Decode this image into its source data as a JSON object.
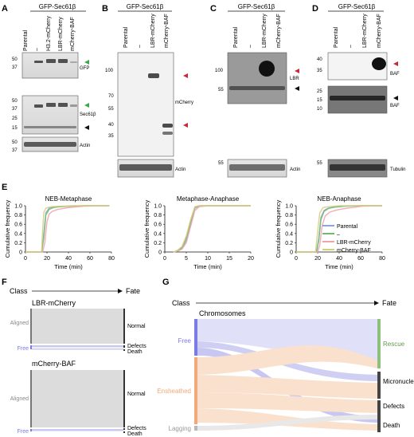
{
  "panels": {
    "A": {
      "letter": "A",
      "header": "GFP-Sec61β",
      "lanes": [
        "Parental",
        "–",
        "H3.2-mCherry",
        "LBR-mCherry",
        "mCherry-BAF"
      ],
      "blots": [
        {
          "label": "GFP",
          "markers": [
            "50",
            "37"
          ]
        },
        {
          "label": "Sec61β",
          "markers": [
            "50",
            "37",
            "25",
            "15"
          ]
        },
        {
          "label": "Actin",
          "markers": [
            "50",
            "37"
          ]
        }
      ]
    },
    "B": {
      "letter": "B",
      "header": "GFP-Sec61β",
      "lanes": [
        "Parental",
        "–",
        "LBR-mCherry",
        "mCherry-BAF"
      ],
      "blots": [
        {
          "label": "mCherry",
          "markers": [
            "100",
            "70",
            "55",
            "40",
            "35"
          ]
        },
        {
          "label": "Actin",
          "markers": []
        }
      ]
    },
    "C": {
      "letter": "C",
      "header": "GFP-Sec61β",
      "lanes": [
        "Parental",
        "–",
        "LBR-mCherry",
        "mCherry-BAF"
      ],
      "blots": [
        {
          "label": "LBR",
          "markers": [
            "100",
            "55"
          ]
        },
        {
          "label": "Actin",
          "markers": [
            "55"
          ]
        }
      ]
    },
    "D": {
      "letter": "D",
      "header": "GFP-Sec61β",
      "lanes": [
        "Parental",
        "–",
        "LBR-mCherry",
        "mCherry-BAF"
      ],
      "blots": [
        {
          "label": "BAF",
          "markers": [
            "40",
            "35"
          ]
        },
        {
          "label": "BAF",
          "markers": [
            "25",
            "15",
            "10"
          ]
        },
        {
          "label": "Tubulin",
          "markers": [
            "55"
          ]
        }
      ]
    },
    "E": {
      "letter": "E",
      "ylabel": "Cumulative frequency",
      "xlabel": "Time (min)",
      "legend": [
        "Parental",
        "–",
        "LBR-mCherry",
        "mCherry-BAF"
      ]
    },
    "F": {
      "letter": "F",
      "class_label": "Class",
      "fate_label": "Fate",
      "plots": [
        {
          "title": "LBR-mCherry",
          "classes": [
            "Aligned",
            "Free"
          ],
          "fates": [
            "Normal",
            "Defects",
            "Death"
          ]
        },
        {
          "title": "mCherry-BAF",
          "classes": [
            "Aligned",
            "Free"
          ],
          "fates": [
            "Normal",
            "Defects",
            "Death"
          ]
        }
      ]
    },
    "G": {
      "letter": "G",
      "class_label": "Class",
      "fate_label": "Fate",
      "title": "Chromosomes",
      "classes": [
        "Free",
        "Ensheathed",
        "Lagging"
      ],
      "fates": [
        "Rescue",
        "Micronuclei",
        "Defects",
        "Death"
      ]
    }
  },
  "colors": {
    "parental": "#8ea6e0",
    "none": "#74b874",
    "lbr": "#f0a3ad",
    "baf": "#d4d07a",
    "free": "#7b7be8",
    "ensheathed": "#f2a878",
    "lagging": "#b8b8b8",
    "rescue": "#8fbf7f",
    "green_arrow": "#3aa84a",
    "red_arrow": "#c8283c"
  },
  "chart_data": [
    {
      "type": "line",
      "title": "NEB-Metaphase",
      "xlabel": "Time (min)",
      "ylabel": "Cumulative frequency",
      "xlim": [
        0,
        80
      ],
      "ylim": [
        0,
        1.0
      ],
      "xticks": [
        0,
        20,
        40,
        60,
        80
      ],
      "yticks": [
        0,
        0.2,
        0.4,
        0.6,
        0.8,
        1.0
      ],
      "series": [
        {
          "name": "Parental",
          "x": [
            0,
            15,
            17,
            19,
            22,
            26,
            32,
            40,
            55,
            78
          ],
          "y": [
            0,
            0,
            0.4,
            0.85,
            0.95,
            0.97,
            0.98,
            0.99,
            1.0,
            1.0
          ]
        },
        {
          "name": "–",
          "x": [
            0,
            15,
            17,
            19,
            22,
            26,
            32,
            40,
            55,
            78
          ],
          "y": [
            0,
            0,
            0.3,
            0.8,
            0.92,
            0.96,
            0.98,
            0.99,
            1.0,
            1.0
          ]
        },
        {
          "name": "LBR-mCherry",
          "x": [
            0,
            16,
            18,
            20,
            22,
            25,
            30,
            40,
            55,
            78
          ],
          "y": [
            0,
            0,
            0.2,
            0.65,
            0.82,
            0.88,
            0.92,
            0.96,
            0.99,
            1.0
          ]
        },
        {
          "name": "mCherry-BAF",
          "x": [
            0,
            15,
            16,
            17,
            19,
            24,
            32,
            45,
            78
          ],
          "y": [
            0,
            0,
            0.5,
            0.85,
            0.95,
            0.98,
            0.99,
            1.0,
            1.0
          ]
        }
      ]
    },
    {
      "type": "line",
      "title": "Metaphase-Anaphase",
      "xlabel": "Time (min)",
      "ylabel": "Cumulative frequency",
      "xlim": [
        0,
        20
      ],
      "ylim": [
        0,
        1.0
      ],
      "xticks": [
        0,
        5,
        10,
        15,
        20
      ],
      "yticks": [
        0,
        0.2,
        0.4,
        0.6,
        0.8,
        1.0
      ],
      "series": [
        {
          "name": "Parental",
          "x": [
            2,
            3,
            4,
            5,
            6,
            7,
            8,
            10,
            20
          ],
          "y": [
            0,
            0.02,
            0.08,
            0.25,
            0.6,
            0.95,
            0.99,
            1.0,
            1.0
          ]
        },
        {
          "name": "–",
          "x": [
            2,
            3,
            4,
            5,
            6,
            7,
            8,
            10,
            20
          ],
          "y": [
            0,
            0.03,
            0.1,
            0.3,
            0.65,
            0.97,
            1.0,
            1.0,
            1.0
          ]
        },
        {
          "name": "LBR-mCherry",
          "x": [
            2,
            3,
            4,
            5,
            6,
            7,
            8,
            10,
            20
          ],
          "y": [
            0,
            0.02,
            0.06,
            0.2,
            0.55,
            0.9,
            0.98,
            1.0,
            1.0
          ]
        },
        {
          "name": "mCherry-BAF",
          "x": [
            2,
            3,
            4,
            5,
            6,
            7,
            8,
            10,
            20
          ],
          "y": [
            0,
            0.04,
            0.12,
            0.35,
            0.7,
            0.98,
            1.0,
            1.0,
            1.0
          ]
        }
      ]
    },
    {
      "type": "line",
      "title": "NEB-Anaphase",
      "xlabel": "Time (min)",
      "ylabel": "Cumulative frequency",
      "xlim": [
        0,
        80
      ],
      "ylim": [
        0,
        1.0
      ],
      "xticks": [
        0,
        20,
        40,
        60,
        80
      ],
      "yticks": [
        0,
        0.2,
        0.4,
        0.6,
        0.8,
        1.0
      ],
      "series": [
        {
          "name": "Parental",
          "x": [
            0,
            19,
            21,
            23,
            26,
            30,
            36,
            45,
            60,
            80
          ],
          "y": [
            0,
            0,
            0.3,
            0.75,
            0.9,
            0.95,
            0.97,
            0.99,
            1.0,
            1.0
          ]
        },
        {
          "name": "–",
          "x": [
            0,
            19,
            21,
            23,
            26,
            30,
            36,
            45,
            60,
            80
          ],
          "y": [
            0,
            0,
            0.25,
            0.7,
            0.88,
            0.94,
            0.97,
            0.99,
            1.0,
            1.0
          ]
        },
        {
          "name": "LBR-mCherry",
          "x": [
            0,
            20,
            22,
            24,
            27,
            31,
            38,
            48,
            62,
            80
          ],
          "y": [
            0,
            0,
            0.15,
            0.55,
            0.78,
            0.86,
            0.91,
            0.95,
            0.99,
            1.0
          ]
        },
        {
          "name": "mCherry-BAF",
          "x": [
            0,
            18,
            20,
            22,
            25,
            30,
            40,
            80
          ],
          "y": [
            0,
            0,
            0.45,
            0.85,
            0.96,
            0.98,
            1.0,
            1.0
          ]
        }
      ]
    }
  ]
}
